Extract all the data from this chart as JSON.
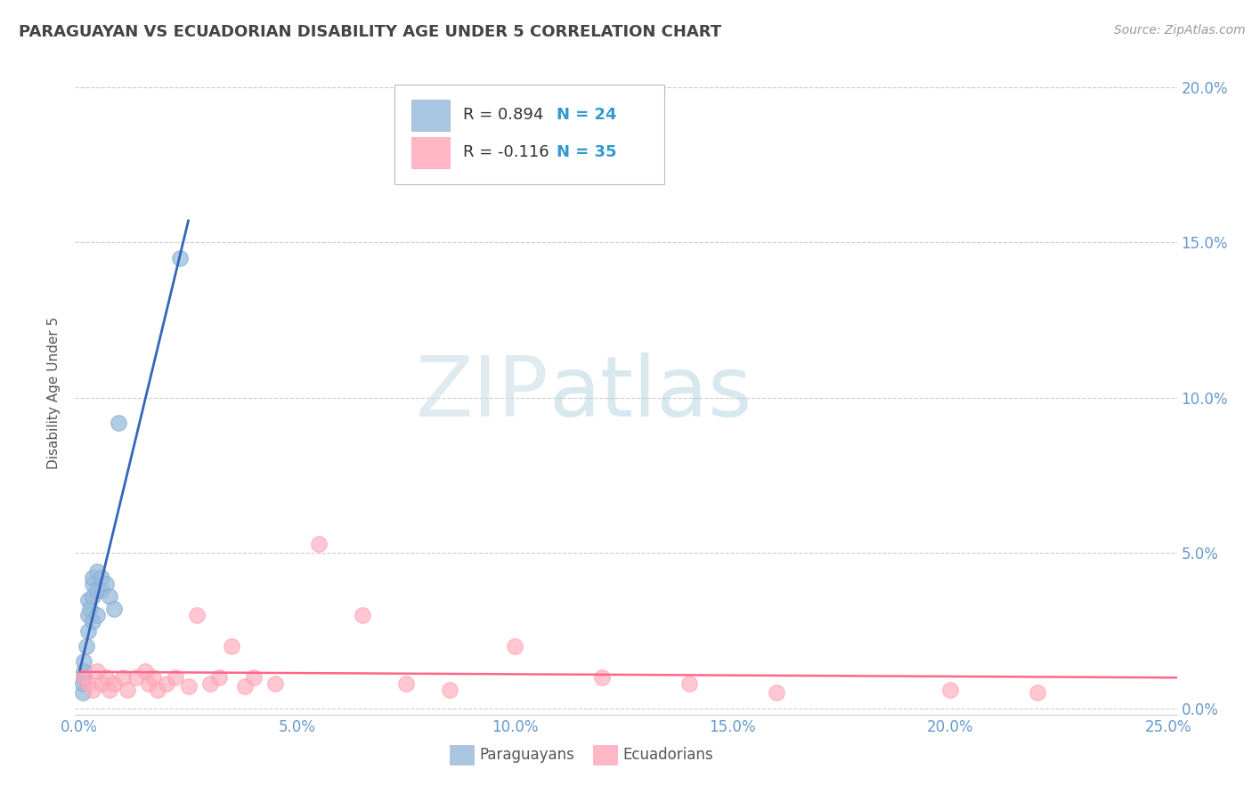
{
  "title": "PARAGUAYAN VS ECUADORIAN DISABILITY AGE UNDER 5 CORRELATION CHART",
  "source_text": "Source: ZipAtlas.com",
  "ylabel": "Disability Age Under 5",
  "xlabel_paraguayans": "Paraguayans",
  "xlabel_ecuadorians": "Ecuadorians",
  "xlim": [
    -0.001,
    0.252
  ],
  "ylim": [
    -0.002,
    0.205
  ],
  "xticks": [
    0.0,
    0.05,
    0.1,
    0.15,
    0.2,
    0.25
  ],
  "yticks": [
    0.0,
    0.05,
    0.1,
    0.15,
    0.2
  ],
  "ytick_labels_right": [
    "0.0%",
    "5.0%",
    "10.0%",
    "15.0%",
    "20.0%"
  ],
  "xtick_labels": [
    "0.0%",
    "5.0%",
    "10.0%",
    "15.0%",
    "20.0%",
    "25.0%"
  ],
  "blue_color": "#99BBDD",
  "pink_color": "#FFAABB",
  "blue_scatter_edge": "#88AACC",
  "pink_scatter_edge": "#FF99AA",
  "blue_line_color": "#3366BB",
  "pink_line_color": "#FF6688",
  "legend_R_blue": "R = 0.894",
  "legend_N_blue": "N = 24",
  "legend_R_pink": "R = -0.116",
  "legend_N_pink": "N = 35",
  "watermark_zip": "ZIP",
  "watermark_atlas": "atlas",
  "background_color": "#FFFFFF",
  "plot_bg_color": "#FFFFFF",
  "grid_color": "#CCCCCC",
  "title_color": "#444444",
  "axis_label_color": "#555555",
  "tick_label_color": "#6699CC",
  "legend_text_color": "#333333",
  "legend_N_color": "#3399CC",
  "source_color": "#999999",
  "blue_scatter_x": [
    0.0008,
    0.0008,
    0.001,
    0.001,
    0.001,
    0.0015,
    0.002,
    0.002,
    0.002,
    0.0025,
    0.003,
    0.003,
    0.003,
    0.003,
    0.004,
    0.004,
    0.004,
    0.005,
    0.005,
    0.006,
    0.007,
    0.008,
    0.009,
    0.023
  ],
  "blue_scatter_y": [
    0.005,
    0.008,
    0.01,
    0.012,
    0.015,
    0.02,
    0.025,
    0.03,
    0.035,
    0.032,
    0.04,
    0.042,
    0.036,
    0.028,
    0.038,
    0.044,
    0.03,
    0.042,
    0.038,
    0.04,
    0.036,
    0.032,
    0.092,
    0.145
  ],
  "pink_scatter_x": [
    0.001,
    0.002,
    0.003,
    0.004,
    0.005,
    0.006,
    0.007,
    0.008,
    0.01,
    0.011,
    0.013,
    0.015,
    0.016,
    0.017,
    0.018,
    0.02,
    0.022,
    0.025,
    0.027,
    0.03,
    0.032,
    0.035,
    0.038,
    0.04,
    0.045,
    0.055,
    0.065,
    0.075,
    0.085,
    0.1,
    0.12,
    0.14,
    0.16,
    0.2,
    0.22
  ],
  "pink_scatter_y": [
    0.01,
    0.008,
    0.006,
    0.012,
    0.008,
    0.01,
    0.006,
    0.008,
    0.01,
    0.006,
    0.01,
    0.012,
    0.008,
    0.01,
    0.006,
    0.008,
    0.01,
    0.007,
    0.03,
    0.008,
    0.01,
    0.02,
    0.007,
    0.01,
    0.008,
    0.053,
    0.03,
    0.008,
    0.006,
    0.02,
    0.01,
    0.008,
    0.005,
    0.006,
    0.005
  ]
}
